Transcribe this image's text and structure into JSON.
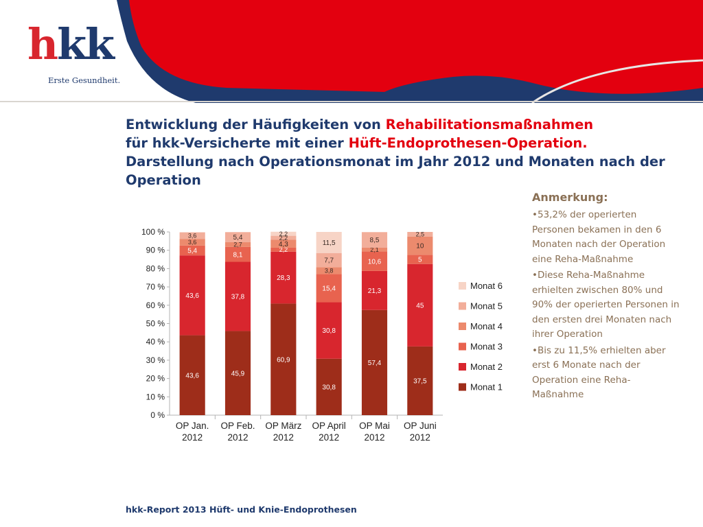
{
  "logo": {
    "wordmark_h": "h",
    "wordmark_rest": "kk",
    "tagline": "Erste Gesundheit."
  },
  "title": {
    "p1": "Entwicklung der Häufigkeiten von ",
    "p2": "Rehabilitationsmaßnahmen",
    "p3": "für hkk-Versicherte mit einer ",
    "p4": "Hüft-Endoprothesen-Operation.",
    "p5": "Darstellung nach Operationsmonat im Jahr 2012 und Monaten nach der Operation"
  },
  "note": {
    "heading": "Anmerkung:",
    "items": [
      "•53,2% der operierten Personen bekamen in den 6 Monaten nach der Operation eine Reha-Maßnahme",
      "•Diese Reha-Maßnahme erhielten zwischen 80% und 90% der operierten Personen in den ersten drei Monaten nach ihrer Operation",
      "•Bis zu 11,5% erhielten aber erst 6 Monate nach der Operation eine Reha-Maßnahme"
    ]
  },
  "footer": "hkk-Report 2013 Hüft- und Knie-Endoprothesen",
  "colors": {
    "navy": "#1f3a6d",
    "brand_red": "#e3000f",
    "note_brown": "#8a7055",
    "series": [
      "#9e2d1a",
      "#d8262e",
      "#e8634f",
      "#ec8a6d",
      "#f2ae9a",
      "#f7d4c6"
    ]
  },
  "chart_data": {
    "type": "bar",
    "stacked": true,
    "categories": [
      [
        "OP Jan.",
        "2012"
      ],
      [
        "OP Feb.",
        "2012"
      ],
      [
        "OP März",
        "2012"
      ],
      [
        "OP April",
        "2012"
      ],
      [
        "OP Mai",
        "2012"
      ],
      [
        "OP Juni",
        "2012"
      ]
    ],
    "series": [
      {
        "name": "Monat 1",
        "values": [
          43.6,
          45.9,
          60.9,
          30.8,
          57.4,
          37.5
        ],
        "labels": [
          "43,6",
          "45,9",
          "60,9",
          "30,8",
          "57,4",
          "37,5"
        ]
      },
      {
        "name": "Monat 2",
        "values": [
          43.6,
          37.8,
          28.3,
          30.8,
          21.3,
          45
        ],
        "labels": [
          "43,6",
          "37,8",
          "28,3",
          "30,8",
          "21,3",
          "45"
        ]
      },
      {
        "name": "Monat 3",
        "values": [
          5.4,
          8.1,
          2.2,
          15.4,
          10.6,
          5
        ],
        "labels": [
          "5,4",
          "8,1",
          "2,2",
          "15,4",
          "10,6",
          "5"
        ]
      },
      {
        "name": "Monat 4",
        "values": [
          3.6,
          2.7,
          4.3,
          3.8,
          2.1,
          10
        ],
        "labels": [
          "3,6",
          "2,7",
          "4,3",
          "3,8",
          "2,1",
          "10"
        ]
      },
      {
        "name": "Monat 5",
        "values": [
          3.6,
          5.4,
          2.2,
          7.7,
          8.5,
          2.5
        ],
        "labels": [
          "3,6",
          "5,4",
          "2,2",
          "7,7",
          "8,5",
          "2,5"
        ]
      },
      {
        "name": "Monat 6",
        "values": [
          0,
          0,
          2.2,
          11.5,
          0,
          0
        ],
        "labels": [
          "",
          "",
          "2,2",
          "11,5",
          "",
          ""
        ]
      }
    ],
    "yticks": [
      "0 %",
      "10 %",
      "20 %",
      "30 %",
      "40 %",
      "50 %",
      "60 %",
      "70 %",
      "80 %",
      "90 %",
      "100 %"
    ],
    "ylim": [
      0,
      100
    ],
    "legend_position": "right"
  }
}
